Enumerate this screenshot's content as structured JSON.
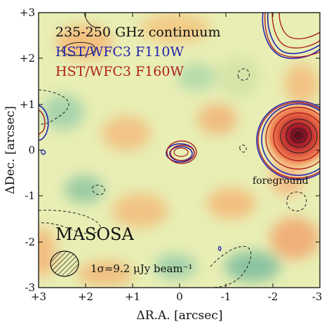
{
  "chart_data": {
    "type": "heatmap",
    "description_type": "image",
    "xlabel": "ΔR.A. [arcsec]",
    "ylabel": "ΔDec. [arcsec]",
    "x_range": [
      3,
      -3
    ],
    "y_range": [
      -3,
      3
    ],
    "x_ticks": [
      "+3",
      "+2",
      "+1",
      "0",
      "-1",
      "-2",
      "-3"
    ],
    "y_ticks": [
      "-3",
      "-2",
      "-1",
      "0",
      "+1",
      "+2",
      "+3"
    ],
    "legend": {
      "placement": "top-left",
      "entries": [
        {
          "label": "235-250 GHz continuum",
          "color": "#111111"
        },
        {
          "label": "HST/WFC3 F110W",
          "color": "#2424b0"
        },
        {
          "label": "HST/WFC3 F160W",
          "color": "#b0201e"
        }
      ]
    },
    "annotations": {
      "field_name": "MASOSA",
      "foreground_label": "foreground",
      "noise_label": "1σ=9.2 μJy beam⁻¹"
    },
    "sources": [
      {
        "name": "target",
        "x": 0.0,
        "y": 0.0
      },
      {
        "name": "foreground",
        "x": -2.6,
        "y": 0.25
      },
      {
        "name": "top-right-edge",
        "x": -2.85,
        "y": 2.6
      },
      {
        "name": "left-edge",
        "x": 3.0,
        "y": 0.8
      }
    ],
    "colors": {
      "background": "#e6ecb0",
      "warm": "#f0b070",
      "cool": "#8cc8a4",
      "core": "#8a1020"
    }
  }
}
